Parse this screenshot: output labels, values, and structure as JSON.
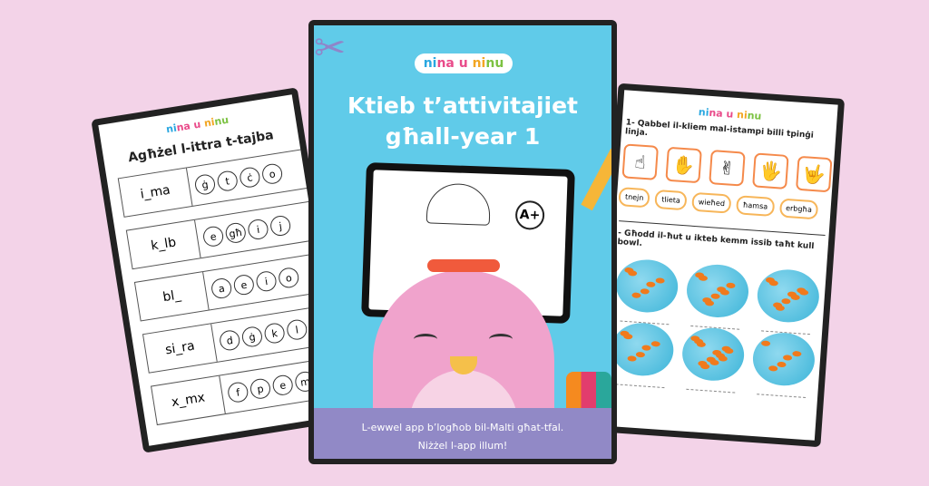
{
  "brand": {
    "logo_parts": [
      "ni",
      "na u ",
      "ni",
      "nu"
    ],
    "logo": "nina u ninu"
  },
  "left_page": {
    "title": "Agħżel l-ittra t-tajba",
    "rows": [
      {
        "word": "i_ma",
        "options": [
          "ġ",
          "t",
          "ċ",
          "o"
        ]
      },
      {
        "word": "k_lb",
        "options": [
          "e",
          "għ",
          "i",
          "j"
        ]
      },
      {
        "word": "bl_",
        "options": [
          "a",
          "e",
          "i",
          "o"
        ]
      },
      {
        "word": "si_ra",
        "options": [
          "d",
          "ġ",
          "k",
          "l"
        ]
      },
      {
        "word": "x_mx",
        "options": [
          "f",
          "p",
          "e",
          "m"
        ]
      }
    ]
  },
  "cover": {
    "title_line1": "Ktieb t’attivitajiet",
    "title_line2": "għall-year 1",
    "footer_line1": "L-ewwel app b’logħob bil-Malti għat-tfal.",
    "footer_line2": "Niżżel l-app illum!",
    "colors": {
      "background": "#60cbe9",
      "footer": "#9189c6",
      "penguin": "#f0a3cc"
    }
  },
  "right_page": {
    "q1": "1- Qabbel il-kliem mal-istampi billi tpinġi linja.",
    "hands": [
      "☝",
      "✋",
      "✌",
      "🖐",
      "🤟"
    ],
    "words": [
      "tnejn",
      "tlieta",
      "wieħed",
      "ħamsa",
      "erbgħa"
    ],
    "q2": "- Għodd il-ħut u ikteb kemm issib taħt kull bowl.",
    "bowl_fish_counts": [
      6,
      8,
      9,
      6,
      12,
      5
    ]
  }
}
